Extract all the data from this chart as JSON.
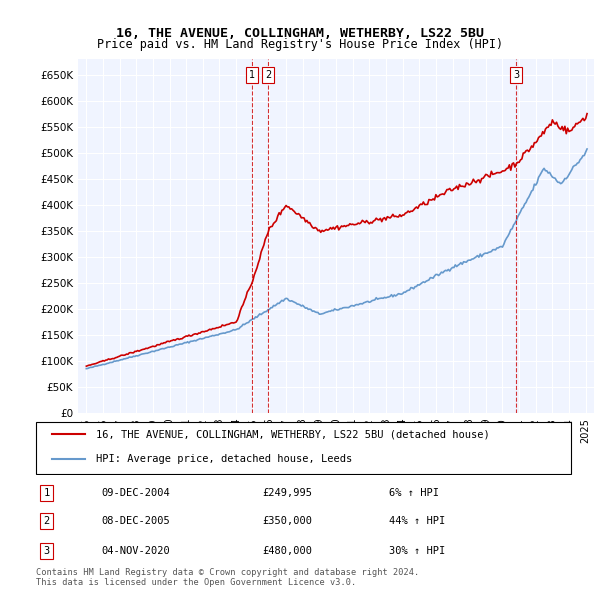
{
  "title1": "16, THE AVENUE, COLLINGHAM, WETHERBY, LS22 5BU",
  "title2": "Price paid vs. HM Land Registry's House Price Index (HPI)",
  "legend_line1": "16, THE AVENUE, COLLINGHAM, WETHERBY, LS22 5BU (detached house)",
  "legend_line2": "HPI: Average price, detached house, Leeds",
  "footer1": "Contains HM Land Registry data © Crown copyright and database right 2024.",
  "footer2": "This data is licensed under the Open Government Licence v3.0.",
  "transactions": [
    {
      "label": "1",
      "date": "09-DEC-2004",
      "price": 249995,
      "pct": "6%",
      "dir": "↑",
      "x_year": 2004.94
    },
    {
      "label": "2",
      "date": "08-DEC-2005",
      "price": 350000,
      "pct": "44%",
      "dir": "↑",
      "x_year": 2005.94
    },
    {
      "label": "3",
      "date": "04-NOV-2020",
      "price": 480000,
      "pct": "30%",
      "dir": "↑",
      "x_year": 2020.84
    }
  ],
  "ylim": [
    0,
    680000
  ],
  "yticks": [
    0,
    50000,
    100000,
    150000,
    200000,
    250000,
    300000,
    350000,
    400000,
    450000,
    500000,
    550000,
    600000,
    650000
  ],
  "xlim_start": 1994.5,
  "xlim_end": 2025.5,
  "hpi_color": "#6699cc",
  "price_color": "#cc0000",
  "vline_color": "#cc0000",
  "background_plot": "#f0f4ff",
  "grid_color": "#ffffff"
}
